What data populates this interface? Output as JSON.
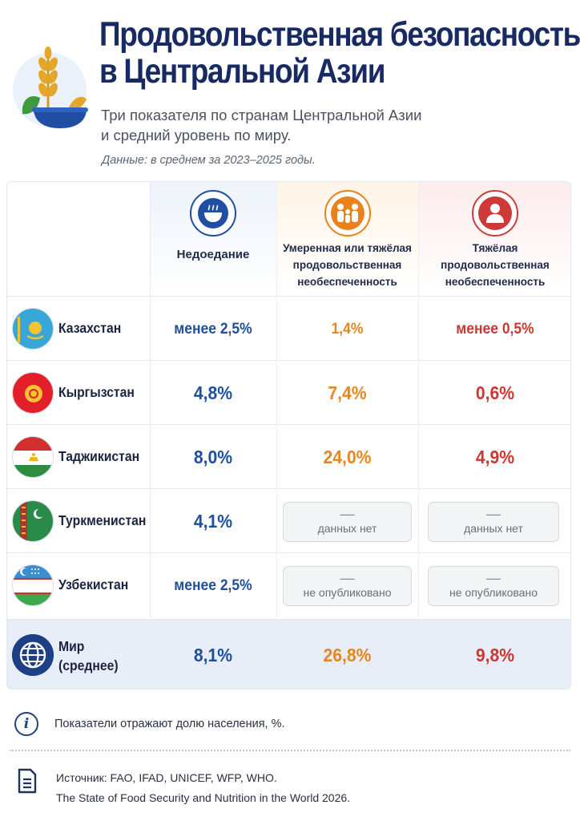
{
  "header": {
    "title_line1": "Продовольственная безопасность",
    "title_line2": "в Центральной Азии",
    "subtitle_line1": "Три показателя по странам Центральной Азии",
    "subtitle_line2": "и средний уровень по миру.",
    "period_note": "Данные: в среднем за 2023–2025 годы.",
    "logo_icon": "wheat-bowl-icon"
  },
  "columns": [
    {
      "label": "Недоедание",
      "icon": "bowl-icon",
      "color": "#1f4ea3"
    },
    {
      "label_lines": [
        "Умеренная или тяжёлая",
        "продовольственная",
        "необеспеченность"
      ],
      "icon": "family-icon",
      "color": "#e9821b"
    },
    {
      "label_lines": [
        "Тяжёлая",
        "продовольственная",
        "необеспеченность"
      ],
      "icon": "person-icon",
      "color": "#cd3a37"
    }
  ],
  "rows": [
    {
      "country": "Казахстан",
      "flag": "kazakhstan-flag",
      "undernourishment": "менее 2,5%",
      "moderate_severe": "1,4%",
      "severe": "менее 0,5%"
    },
    {
      "country": "Кыргызстан",
      "flag": "kyrgyzstan-flag",
      "undernourishment": "4,8%",
      "moderate_severe": "7,4%",
      "severe": "0,6%"
    },
    {
      "country": "Таджикистан",
      "flag": "tajikistan-flag",
      "undernourishment": "8,0%",
      "moderate_severe": "24,0%",
      "severe": "4,9%"
    },
    {
      "country": "Туркменистан",
      "flag": "turkmenistan-flag",
      "undernourishment": "4,1%",
      "moderate_severe": "данных нет",
      "severe": "данных нет",
      "dash": "—"
    },
    {
      "country": "Узбекистан",
      "flag": "uzbekistan-flag",
      "undernourishment": "менее 2,5%",
      "moderate_severe": "не опубликовано",
      "severe": "не опубликовано",
      "dash": "—"
    }
  ],
  "world": {
    "label_line1": "Мир",
    "label_line2": "(среднее)",
    "icon": "globe-icon",
    "undernourishment": "8,1%",
    "moderate_severe": "26,8%",
    "severe": "9,8%"
  },
  "footer": {
    "info_icon": "info-icon",
    "info_text": "Показатели отражают долю населения, %.",
    "source_icon": "document-icon",
    "source_line1": "Источник: FAO, IFAD, UNICEF, WFP, WHO.",
    "source_line2": "The State of Food Security and Nutrition in the World 2026."
  },
  "colors": {
    "title": "#172a63",
    "blue": "#1e4f9c",
    "orange": "#e5861f",
    "red": "#cf3533"
  }
}
